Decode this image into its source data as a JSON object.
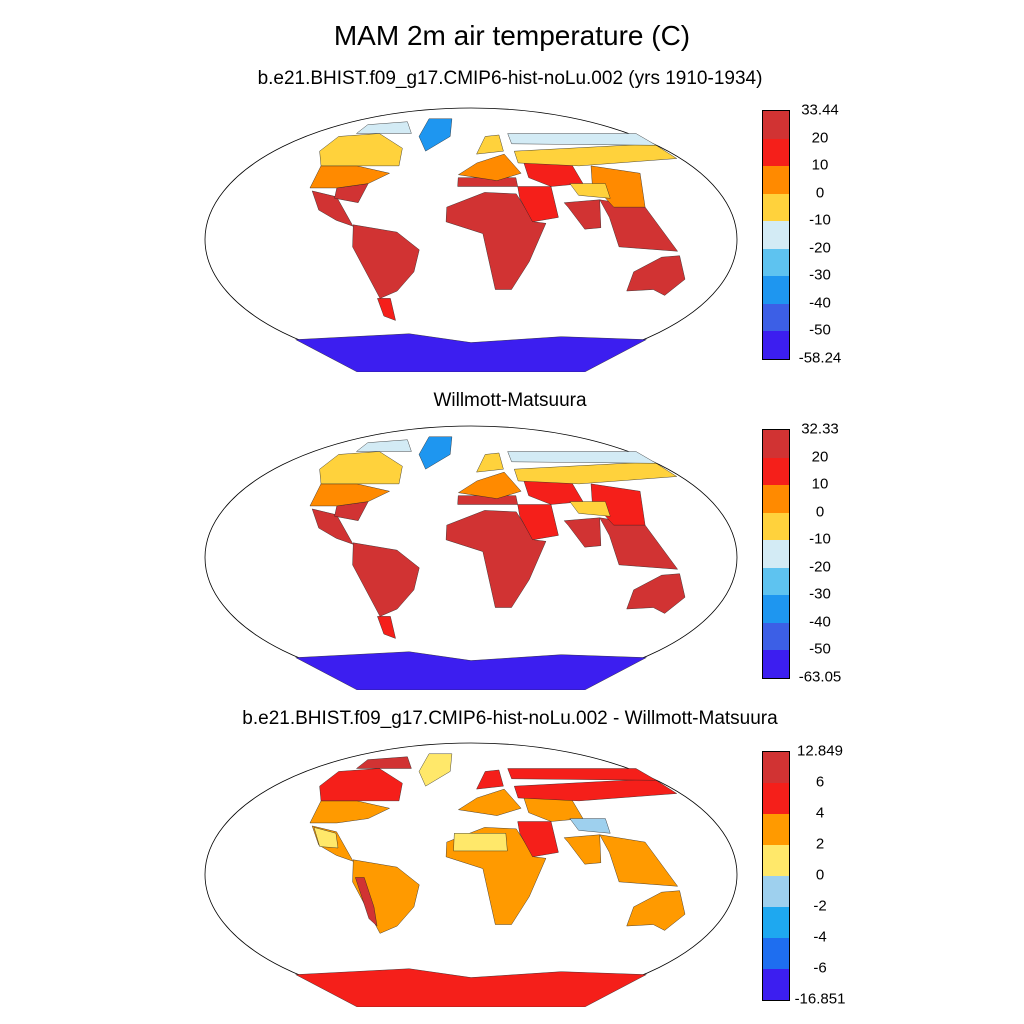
{
  "figure": {
    "title": "MAM 2m air temperature (C)"
  },
  "panels": [
    {
      "title": "b.e21.BHIST.f09_g17.CMIP6-hist-noLu.002 (yrs 1910-1934)",
      "colorbar": {
        "labels": [
          "33.44",
          "20",
          "10",
          "0",
          "-10",
          "-20",
          "-30",
          "-40",
          "-50",
          "-58.24"
        ],
        "colors": [
          "#d13333",
          "#f51f1a",
          "#ff8a00",
          "#ffd23c",
          "#d3ebf5",
          "#5ec3f0",
          "#1e96f0",
          "#3c5fe6",
          "#3c1ef0"
        ]
      }
    },
    {
      "title": "Willmott-Matsuura",
      "colorbar": {
        "labels": [
          "32.33",
          "20",
          "10",
          "0",
          "-10",
          "-20",
          "-30",
          "-40",
          "-50",
          "-63.05"
        ],
        "colors": [
          "#d13333",
          "#f51f1a",
          "#ff8a00",
          "#ffd23c",
          "#d3ebf5",
          "#5ec3f0",
          "#1e96f0",
          "#3c5fe6",
          "#3c1ef0"
        ]
      }
    },
    {
      "title": "b.e21.BHIST.f09_g17.CMIP6-hist-noLu.002 - Willmott-Matsuura",
      "colorbar": {
        "labels": [
          "12.849",
          "6",
          "4",
          "2",
          "0",
          "-2",
          "-4",
          "-6",
          "-16.851"
        ],
        "colors": [
          "#d13333",
          "#f51f1a",
          "#ff9a00",
          "#ffe86a",
          "#9ed0ee",
          "#1ea8f0",
          "#1e6ef0",
          "#3c1ef0"
        ]
      }
    }
  ],
  "chart_data": [
    {
      "type": "heatmap",
      "projection": "Robinson",
      "variable": "2m air temperature",
      "units": "C",
      "season": "MAM",
      "color_levels": [
        -50,
        -40,
        -30,
        -20,
        -10,
        0,
        10,
        20
      ],
      "data_range": [
        -58.24,
        33.44
      ],
      "regions": [
        {
          "region": "Africa",
          "level": 4
        },
        {
          "region": "South America",
          "level": 4
        },
        {
          "region": "Australia",
          "level": 4
        },
        {
          "region": "South Asia",
          "level": 4
        },
        {
          "region": "Southeast Asia",
          "level": 4
        },
        {
          "region": "Central America",
          "level": 4
        },
        {
          "region": "Southeast USA",
          "level": 4
        },
        {
          "region": "Mediterranean",
          "level": 4
        },
        {
          "region": "Middle East",
          "level": 3
        },
        {
          "region": "Patagonia",
          "level": 3
        },
        {
          "region": "North America mid",
          "level": 2
        },
        {
          "region": "Europe",
          "level": 2
        },
        {
          "region": "Central Asia",
          "level": 3
        },
        {
          "region": "China",
          "level": 2
        },
        {
          "region": "Canada",
          "level": 1
        },
        {
          "region": "Scandinavia",
          "level": 1
        },
        {
          "region": "Siberia",
          "level": 1
        },
        {
          "region": "Tibet",
          "level": 1
        },
        {
          "region": "Arctic Canada",
          "level": 0
        },
        {
          "region": "Arctic Siberia",
          "level": 0
        },
        {
          "region": "Greenland",
          "level": -2
        },
        {
          "region": "Antarctica",
          "level": -4
        }
      ]
    },
    {
      "type": "heatmap",
      "projection": "Robinson",
      "variable": "2m air temperature",
      "units": "C",
      "season": "MAM",
      "color_levels": [
        -50,
        -40,
        -30,
        -20,
        -10,
        0,
        10,
        20
      ],
      "data_range": [
        -63.05,
        32.33
      ],
      "regions": [
        {
          "region": "Africa",
          "level": 4
        },
        {
          "region": "South America",
          "level": 4
        },
        {
          "region": "Australia",
          "level": 4
        },
        {
          "region": "South Asia",
          "level": 4
        },
        {
          "region": "Southeast Asia",
          "level": 4
        },
        {
          "region": "Central America",
          "level": 4
        },
        {
          "region": "Southeast USA",
          "level": 4
        },
        {
          "region": "Mediterranean",
          "level": 4
        },
        {
          "region": "Middle East",
          "level": 3
        },
        {
          "region": "Patagonia",
          "level": 3
        },
        {
          "region": "North America mid",
          "level": 2
        },
        {
          "region": "Europe",
          "level": 2
        },
        {
          "region": "Central Asia",
          "level": 3
        },
        {
          "region": "China",
          "level": 3
        },
        {
          "region": "Canada",
          "level": 1
        },
        {
          "region": "Scandinavia",
          "level": 1
        },
        {
          "region": "Siberia",
          "level": 1
        },
        {
          "region": "Tibet",
          "level": 1
        },
        {
          "region": "Arctic Canada",
          "level": 0
        },
        {
          "region": "Arctic Siberia",
          "level": 0
        },
        {
          "region": "Greenland",
          "level": -2
        },
        {
          "region": "Antarctica",
          "level": -4
        }
      ]
    },
    {
      "type": "heatmap",
      "projection": "Robinson",
      "variable": "2m air temperature difference",
      "units": "C",
      "season": "MAM",
      "color_levels": [
        -6,
        -4,
        -2,
        0,
        2,
        4,
        6
      ],
      "data_range": [
        -16.851,
        12.849
      ],
      "regions": [
        {
          "region": "Africa",
          "level": 1
        },
        {
          "region": "Sahara",
          "level": 0
        },
        {
          "region": "South America",
          "level": 1
        },
        {
          "region": "Andes",
          "level": 3
        },
        {
          "region": "Australia",
          "level": 1
        },
        {
          "region": "South Asia",
          "level": 1
        },
        {
          "region": "Southeast Asia",
          "level": 1
        },
        {
          "region": "Central America",
          "level": 1
        },
        {
          "region": "North America mid",
          "level": 1
        },
        {
          "region": "Mexico",
          "level": 0
        },
        {
          "region": "Europe",
          "level": 1
        },
        {
          "region": "Middle East",
          "level": 2
        },
        {
          "region": "Central Asia",
          "level": 1
        },
        {
          "region": "Tibet",
          "level": -1
        },
        {
          "region": "Siberia",
          "level": 2
        },
        {
          "region": "Scandinavia",
          "level": 2
        },
        {
          "region": "Canada",
          "level": 2
        },
        {
          "region": "Arctic Canada",
          "level": 3
        },
        {
          "region": "Arctic Siberia",
          "level": 2
        },
        {
          "region": "Greenland",
          "level": 0
        },
        {
          "region": "Antarctica",
          "level": 2
        }
      ]
    }
  ]
}
